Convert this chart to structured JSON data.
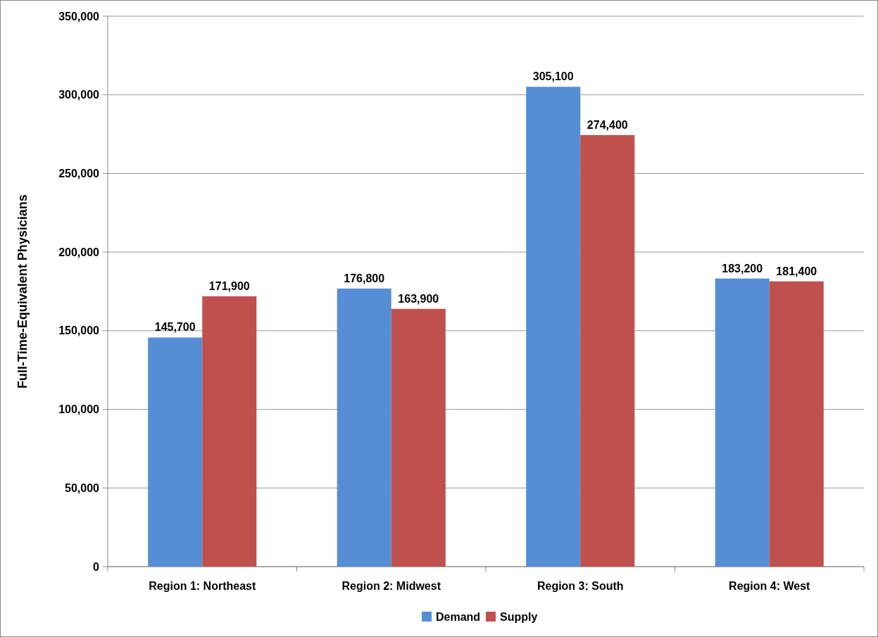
{
  "chart_data": {
    "type": "bar",
    "ylabel": "Full-Time-Equivalent Physicians",
    "categories": [
      "Region 1: Northeast",
      "Region 2: Midwest",
      "Region 3: South",
      "Region 4: West"
    ],
    "series": [
      {
        "name": "Demand",
        "color": "#558ed5",
        "values": [
          145700,
          176800,
          305100,
          183200
        ],
        "value_labels": [
          "145,700",
          "176,800",
          "305,100",
          "183,200"
        ]
      },
      {
        "name": "Supply",
        "color": "#c0504d",
        "values": [
          171900,
          163900,
          274400,
          181400
        ],
        "value_labels": [
          "171,900",
          "163,900",
          "274,400",
          "181,400"
        ]
      }
    ],
    "ylim": [
      0,
      350000
    ],
    "yticks": [
      0,
      {
        "value": 50000,
        "label": "50,000"
      },
      {
        "value": 100000,
        "label": "100,000"
      },
      {
        "value": 150000,
        "label": "150,000"
      },
      {
        "value": 200000,
        "label": "200,000"
      },
      {
        "value": 250000,
        "label": "250,000"
      },
      {
        "value": 300000,
        "label": "300,000"
      },
      {
        "value": 350000,
        "label": "350,000"
      }
    ],
    "grid": "y",
    "legend": "bottom"
  }
}
